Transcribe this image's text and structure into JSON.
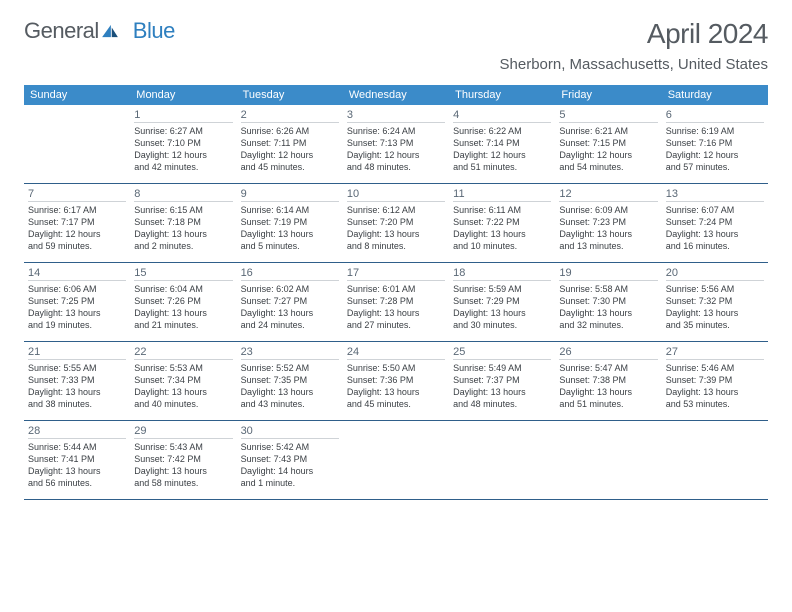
{
  "brand": {
    "part1": "General",
    "part2": "Blue"
  },
  "title": "April 2024",
  "location": "Sherborn, Massachusetts, United States",
  "header_color": "#3b8bc9",
  "row_divider_color": "#2f5f8a",
  "weekdays": [
    "Sunday",
    "Monday",
    "Tuesday",
    "Wednesday",
    "Thursday",
    "Friday",
    "Saturday"
  ],
  "weeks": [
    [
      {
        "blank": true
      },
      {
        "d": "1",
        "sr": "6:27 AM",
        "ss": "7:10 PM",
        "dl1": "12 hours",
        "dl2": "and 42 minutes."
      },
      {
        "d": "2",
        "sr": "6:26 AM",
        "ss": "7:11 PM",
        "dl1": "12 hours",
        "dl2": "and 45 minutes."
      },
      {
        "d": "3",
        "sr": "6:24 AM",
        "ss": "7:13 PM",
        "dl1": "12 hours",
        "dl2": "and 48 minutes."
      },
      {
        "d": "4",
        "sr": "6:22 AM",
        "ss": "7:14 PM",
        "dl1": "12 hours",
        "dl2": "and 51 minutes."
      },
      {
        "d": "5",
        "sr": "6:21 AM",
        "ss": "7:15 PM",
        "dl1": "12 hours",
        "dl2": "and 54 minutes."
      },
      {
        "d": "6",
        "sr": "6:19 AM",
        "ss": "7:16 PM",
        "dl1": "12 hours",
        "dl2": "and 57 minutes."
      }
    ],
    [
      {
        "d": "7",
        "sr": "6:17 AM",
        "ss": "7:17 PM",
        "dl1": "12 hours",
        "dl2": "and 59 minutes."
      },
      {
        "d": "8",
        "sr": "6:15 AM",
        "ss": "7:18 PM",
        "dl1": "13 hours",
        "dl2": "and 2 minutes."
      },
      {
        "d": "9",
        "sr": "6:14 AM",
        "ss": "7:19 PM",
        "dl1": "13 hours",
        "dl2": "and 5 minutes."
      },
      {
        "d": "10",
        "sr": "6:12 AM",
        "ss": "7:20 PM",
        "dl1": "13 hours",
        "dl2": "and 8 minutes."
      },
      {
        "d": "11",
        "sr": "6:11 AM",
        "ss": "7:22 PM",
        "dl1": "13 hours",
        "dl2": "and 10 minutes."
      },
      {
        "d": "12",
        "sr": "6:09 AM",
        "ss": "7:23 PM",
        "dl1": "13 hours",
        "dl2": "and 13 minutes."
      },
      {
        "d": "13",
        "sr": "6:07 AM",
        "ss": "7:24 PM",
        "dl1": "13 hours",
        "dl2": "and 16 minutes."
      }
    ],
    [
      {
        "d": "14",
        "sr": "6:06 AM",
        "ss": "7:25 PM",
        "dl1": "13 hours",
        "dl2": "and 19 minutes."
      },
      {
        "d": "15",
        "sr": "6:04 AM",
        "ss": "7:26 PM",
        "dl1": "13 hours",
        "dl2": "and 21 minutes."
      },
      {
        "d": "16",
        "sr": "6:02 AM",
        "ss": "7:27 PM",
        "dl1": "13 hours",
        "dl2": "and 24 minutes."
      },
      {
        "d": "17",
        "sr": "6:01 AM",
        "ss": "7:28 PM",
        "dl1": "13 hours",
        "dl2": "and 27 minutes."
      },
      {
        "d": "18",
        "sr": "5:59 AM",
        "ss": "7:29 PM",
        "dl1": "13 hours",
        "dl2": "and 30 minutes."
      },
      {
        "d": "19",
        "sr": "5:58 AM",
        "ss": "7:30 PM",
        "dl1": "13 hours",
        "dl2": "and 32 minutes."
      },
      {
        "d": "20",
        "sr": "5:56 AM",
        "ss": "7:32 PM",
        "dl1": "13 hours",
        "dl2": "and 35 minutes."
      }
    ],
    [
      {
        "d": "21",
        "sr": "5:55 AM",
        "ss": "7:33 PM",
        "dl1": "13 hours",
        "dl2": "and 38 minutes."
      },
      {
        "d": "22",
        "sr": "5:53 AM",
        "ss": "7:34 PM",
        "dl1": "13 hours",
        "dl2": "and 40 minutes."
      },
      {
        "d": "23",
        "sr": "5:52 AM",
        "ss": "7:35 PM",
        "dl1": "13 hours",
        "dl2": "and 43 minutes."
      },
      {
        "d": "24",
        "sr": "5:50 AM",
        "ss": "7:36 PM",
        "dl1": "13 hours",
        "dl2": "and 45 minutes."
      },
      {
        "d": "25",
        "sr": "5:49 AM",
        "ss": "7:37 PM",
        "dl1": "13 hours",
        "dl2": "and 48 minutes."
      },
      {
        "d": "26",
        "sr": "5:47 AM",
        "ss": "7:38 PM",
        "dl1": "13 hours",
        "dl2": "and 51 minutes."
      },
      {
        "d": "27",
        "sr": "5:46 AM",
        "ss": "7:39 PM",
        "dl1": "13 hours",
        "dl2": "and 53 minutes."
      }
    ],
    [
      {
        "d": "28",
        "sr": "5:44 AM",
        "ss": "7:41 PM",
        "dl1": "13 hours",
        "dl2": "and 56 minutes."
      },
      {
        "d": "29",
        "sr": "5:43 AM",
        "ss": "7:42 PM",
        "dl1": "13 hours",
        "dl2": "and 58 minutes."
      },
      {
        "d": "30",
        "sr": "5:42 AM",
        "ss": "7:43 PM",
        "dl1": "14 hours",
        "dl2": "and 1 minute."
      },
      {
        "blank": true
      },
      {
        "blank": true
      },
      {
        "blank": true
      },
      {
        "blank": true
      }
    ]
  ]
}
